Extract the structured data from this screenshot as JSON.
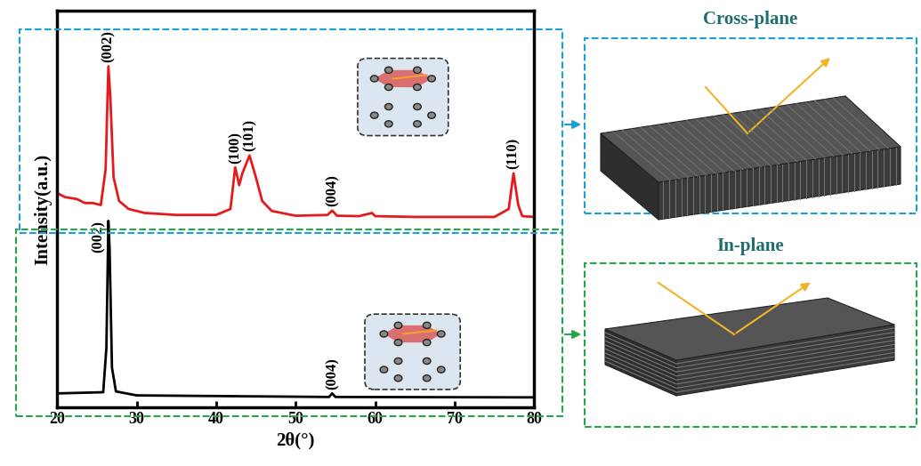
{
  "chart_data": {
    "type": "line",
    "x_label": "2θ(°)",
    "y_label": "Intensity(a.u.)",
    "xlim": [
      20,
      80
    ],
    "xticks": [
      20,
      30,
      40,
      50,
      60,
      70,
      80
    ],
    "ylim": [
      0,
      100
    ],
    "yticks": [],
    "tick_labels": "x",
    "grid": false,
    "series": [
      {
        "color": "#e41a1c",
        "x": [
          20,
          21,
          22.5,
          23.5,
          24.5,
          25.5,
          26.1,
          26.45,
          26.7,
          27.1,
          27.8,
          29,
          31,
          35,
          40,
          41.8,
          42.4,
          42.9,
          43.3,
          44.2,
          45,
          45.8,
          47,
          50,
          54.0,
          54.6,
          55.2,
          58,
          59.6,
          60,
          65,
          70,
          75,
          76.8,
          77.4,
          78.0,
          78.5,
          80
        ],
        "values": [
          54,
          53,
          52.5,
          51.5,
          51.5,
          51,
          60,
          86,
          78,
          58,
          52,
          50,
          49,
          48.5,
          48.5,
          50,
          60.5,
          56,
          59,
          63.5,
          58,
          52,
          49.5,
          48.3,
          48.5,
          49.6,
          48.3,
          48.2,
          49,
          48.2,
          48,
          48,
          48,
          50,
          59,
          51,
          48.2,
          48
        ],
        "peaks": [
          {
            "label": "(002)",
            "x": 26.45
          },
          {
            "label": "(100)",
            "x": 42.4
          },
          {
            "label": "(101)",
            "x": 44.2
          },
          {
            "label": "(004)",
            "x": 54.6
          },
          {
            "label": "(110)",
            "x": 77.4
          }
        ]
      },
      {
        "color": "#000000",
        "x": [
          20,
          25.8,
          26.2,
          26.45,
          26.6,
          26.9,
          27.4,
          30,
          54.2,
          54.6,
          55.0,
          80
        ],
        "values": [
          3.5,
          3.8,
          15,
          47,
          40,
          10,
          4,
          3,
          2.6,
          3.5,
          2.6,
          2.5
        ],
        "peaks": [
          {
            "label": "(002)",
            "x": 26.45
          },
          {
            "label": "(004)",
            "x": 54.6
          }
        ]
      }
    ]
  },
  "panels": [
    {
      "title": "Cross-plane"
    },
    {
      "title": "In-plane"
    }
  ]
}
